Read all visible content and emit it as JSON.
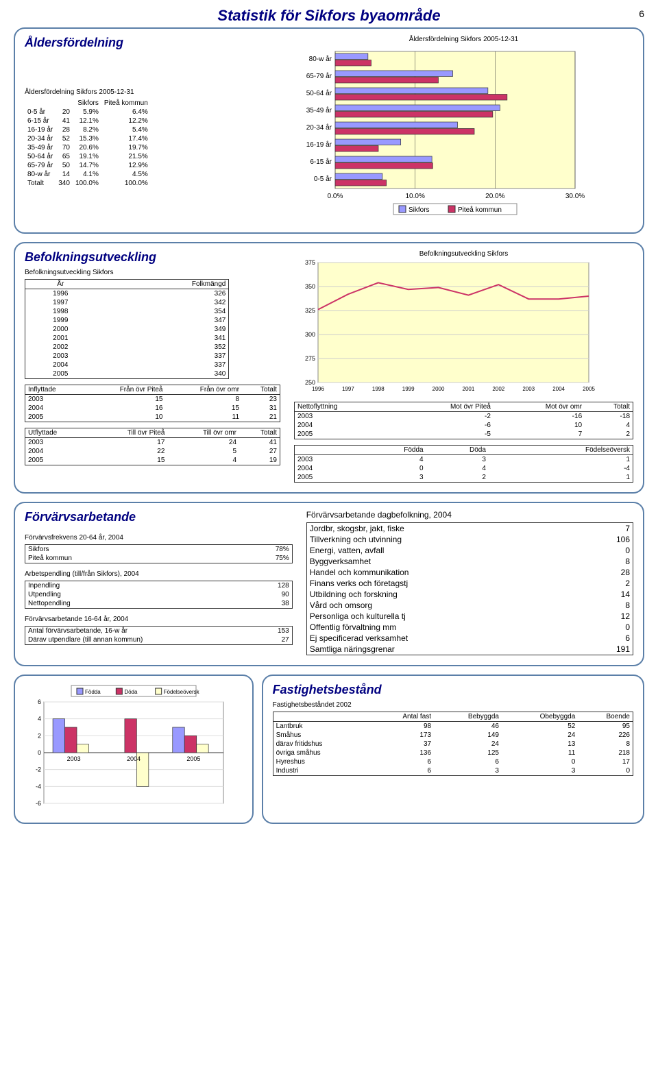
{
  "doc_title": "Statistik för Sikfors byaområde",
  "page_number": "6",
  "age": {
    "section_title": "Åldersfördelning",
    "table_title": "Åldersfördelning Sikfors 2005-12-31",
    "col_sikfors": "Sikfors",
    "col_kommun": "Piteå kommun",
    "rows": [
      {
        "label": "0-5 år",
        "n": "20",
        "s": "5.9%",
        "k": "6.4%"
      },
      {
        "label": "6-15 år",
        "n": "41",
        "s": "12.1%",
        "k": "12.2%"
      },
      {
        "label": "16-19 år",
        "n": "28",
        "s": "8.2%",
        "k": "5.4%"
      },
      {
        "label": "20-34 år",
        "n": "52",
        "s": "15.3%",
        "k": "17.4%"
      },
      {
        "label": "35-49 år",
        "n": "70",
        "s": "20.6%",
        "k": "19.7%"
      },
      {
        "label": "50-64 år",
        "n": "65",
        "s": "19.1%",
        "k": "21.5%"
      },
      {
        "label": "65-79 år",
        "n": "50",
        "s": "14.7%",
        "k": "12.9%"
      },
      {
        "label": "80-w år",
        "n": "14",
        "s": "4.1%",
        "k": "4.5%"
      },
      {
        "label": "Totalt",
        "n": "340",
        "s": "100.0%",
        "k": "100.0%"
      }
    ],
    "chart": {
      "title": "Åldersfördelning Sikfors 2005-12-31",
      "categories": [
        "80-w år",
        "65-79 år",
        "50-64 år",
        "35-49 år",
        "20-34 år",
        "16-19 år",
        "6-15 år",
        "0-5 år"
      ],
      "sikfors": [
        4.1,
        14.7,
        19.1,
        20.6,
        15.3,
        8.2,
        12.1,
        5.9
      ],
      "kommun": [
        4.5,
        12.9,
        21.5,
        19.7,
        17.4,
        5.4,
        12.2,
        6.4
      ],
      "color_sikfors": "#9999ff",
      "color_kommun": "#cc3366",
      "xmax": 30,
      "xtick_step": 10,
      "xtick_labels": [
        "0.0%",
        "10.0%",
        "20.0%",
        "30.0%"
      ],
      "bg": "#ffffcc",
      "grid": "#333333",
      "legend_s": "Sikfors",
      "legend_k": "Piteå kommun"
    }
  },
  "pop": {
    "section_title": "Befolkningsutveckling",
    "table_title": "Befolkningsutveckling Sikfors",
    "col_year": "År",
    "col_pop": "Folkmängd",
    "years": [
      {
        "y": "1996",
        "p": "326"
      },
      {
        "y": "1997",
        "p": "342"
      },
      {
        "y": "1998",
        "p": "354"
      },
      {
        "y": "1999",
        "p": "347"
      },
      {
        "y": "2000",
        "p": "349"
      },
      {
        "y": "2001",
        "p": "341"
      },
      {
        "y": "2002",
        "p": "352"
      },
      {
        "y": "2003",
        "p": "337"
      },
      {
        "y": "2004",
        "p": "337"
      },
      {
        "y": "2005",
        "p": "340"
      }
    ],
    "line_chart": {
      "title": "Befolkningsutveckling Sikfors",
      "ymin": 250,
      "ymax": 375,
      "ytick": 25,
      "line_color": "#cc3366",
      "bg": "#ffffcc",
      "grid": "#cccccc"
    },
    "inflytt": {
      "h": [
        "Inflyttade",
        "Från övr Piteå",
        "Från övr omr",
        "Totalt"
      ],
      "rows": [
        [
          "2003",
          "15",
          "8",
          "23"
        ],
        [
          "2004",
          "16",
          "15",
          "31"
        ],
        [
          "2005",
          "10",
          "11",
          "21"
        ]
      ]
    },
    "utflytt": {
      "h": [
        "Utflyttade",
        "Till övr Piteå",
        "Till övr omr",
        "Totalt"
      ],
      "rows": [
        [
          "2003",
          "17",
          "24",
          "41"
        ],
        [
          "2004",
          "22",
          "5",
          "27"
        ],
        [
          "2005",
          "15",
          "4",
          "19"
        ]
      ]
    },
    "netto": {
      "h": [
        "Nettoflyttning",
        "Mot övr Piteå",
        "Mot övr omr",
        "Totalt"
      ],
      "rows": [
        [
          "2003",
          "-2",
          "-16",
          "-18"
        ],
        [
          "2004",
          "-6",
          "10",
          "4"
        ],
        [
          "2005",
          "-5",
          "7",
          "2"
        ]
      ]
    },
    "fdf": {
      "h": [
        "",
        "Födda",
        "Döda",
        "Födelseöversk"
      ],
      "rows": [
        [
          "2003",
          "4",
          "3",
          "1"
        ],
        [
          "2004",
          "0",
          "4",
          "-4"
        ],
        [
          "2005",
          "3",
          "2",
          "1"
        ]
      ]
    }
  },
  "work": {
    "section_title": "Förvärvsarbetande",
    "freq_title": "Förvärvsfrekvens 20-64 år, 2004",
    "freq_rows": [
      [
        "Sikfors",
        "78%"
      ],
      [
        "Piteå kommun",
        "75%"
      ]
    ],
    "commute_title": "Arbetspendling (till/från Sikfors), 2004",
    "commute_rows": [
      [
        "Inpendling",
        "128"
      ],
      [
        "Utpendling",
        "90"
      ],
      [
        "Nettopendling",
        "38"
      ]
    ],
    "emp_title": "Förvärvsarbetande 16-64 år, 2004",
    "emp_rows": [
      [
        "Antal förvärvsarbetande, 16-w år",
        "153"
      ],
      [
        "Därav utpendlare (till annan kommun)",
        "27"
      ]
    ],
    "day_title": "Förvärvsarbetande dagbefolkning, 2004",
    "day_rows": [
      [
        "Jordbr, skogsbr, jakt, fiske",
        "7"
      ],
      [
        "Tillverkning och utvinning",
        "106"
      ],
      [
        "Energi, vatten, avfall",
        "0"
      ],
      [
        "Byggverksamhet",
        "8"
      ],
      [
        "Handel och kommunikation",
        "28"
      ],
      [
        "Finans verks och företagstj",
        "2"
      ],
      [
        "Utbildning och forskning",
        "14"
      ],
      [
        "Vård och omsorg",
        "8"
      ],
      [
        "Personliga och kulturella tj",
        "12"
      ],
      [
        "Offentlig förvaltning mm",
        "0"
      ],
      [
        "Ej specificerad verksamhet",
        "6"
      ],
      [
        "Samtliga näringsgrenar",
        "191"
      ]
    ]
  },
  "prop": {
    "section_title": "Fastighetsbestånd",
    "table_title": "Fastighetsbeståndet 2002",
    "cols": [
      "",
      "Antal fast",
      "Bebyggda",
      "Obebyggda",
      "Boende"
    ],
    "rows": [
      [
        "Lantbruk",
        "98",
        "46",
        "52",
        "95"
      ],
      [
        "Småhus",
        "173",
        "149",
        "24",
        "226"
      ],
      [
        "  därav fritidshus",
        "37",
        "24",
        "13",
        "8"
      ],
      [
        "  övriga småhus",
        "136",
        "125",
        "11",
        "218"
      ],
      [
        "Hyreshus",
        "6",
        "6",
        "0",
        "17"
      ],
      [
        "Industri",
        "6",
        "3",
        "3",
        "0"
      ]
    ],
    "bar_chart": {
      "legend": [
        "Födda",
        "Döda",
        "Födelseöversk"
      ],
      "years": [
        "2003",
        "2004",
        "2005"
      ],
      "fodda": [
        4,
        0,
        3
      ],
      "doda": [
        3,
        4,
        2
      ],
      "over": [
        1,
        -4,
        1
      ],
      "ymin": -6,
      "ymax": 6,
      "ytick": 2,
      "c_fodda": "#9999ff",
      "c_doda": "#cc3366",
      "c_over": "#ffffcc",
      "bg": "#ffffff",
      "border": "#333"
    }
  }
}
